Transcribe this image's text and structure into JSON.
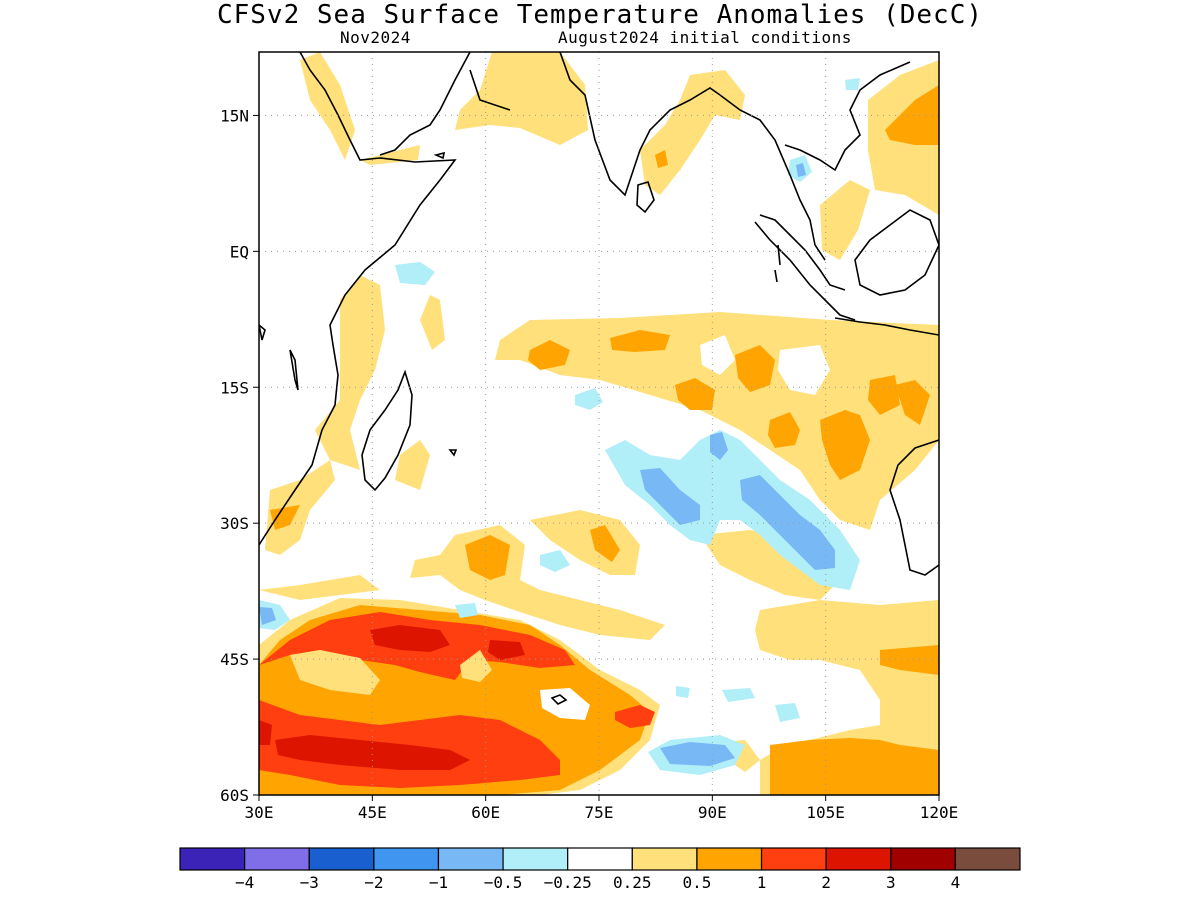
{
  "title": "CFSv2 Sea Surface Temperature Anomalies (DecC)",
  "subtitle_left": "Nov2024",
  "subtitle_right": "August2024 initial conditions",
  "map": {
    "lon_range": [
      30,
      120
    ],
    "lat_range": [
      -60,
      22
    ],
    "lon_ticks": [
      {
        "value": 30,
        "label": "30E"
      },
      {
        "value": 45,
        "label": "45E"
      },
      {
        "value": 60,
        "label": "60E"
      },
      {
        "value": 75,
        "label": "75E"
      },
      {
        "value": 90,
        "label": "90E"
      },
      {
        "value": 105,
        "label": "105E"
      },
      {
        "value": 120,
        "label": "120E"
      }
    ],
    "lat_ticks": [
      {
        "value": 15,
        "label": "15N"
      },
      {
        "value": 0,
        "label": "EQ"
      },
      {
        "value": -15,
        "label": "15S"
      },
      {
        "value": -30,
        "label": "30S"
      },
      {
        "value": -45,
        "label": "45S"
      },
      {
        "value": -60,
        "label": "60S"
      }
    ],
    "grid": true
  },
  "colorbar": {
    "colors": [
      "#3b23b8",
      "#7f6ee8",
      "#1a5fd0",
      "#3f95f0",
      "#78b8f5",
      "#b0eef8",
      "#ffffff",
      "#ffe07a",
      "#ffa400",
      "#ff3f10",
      "#dd1500",
      "#a10000",
      "#7a4c3e"
    ],
    "labels": [
      "−4",
      "−3",
      "−2",
      "−1",
      "−0.5",
      "−0.25",
      "0.25",
      "0.5",
      "1",
      "2",
      "3",
      "4"
    ]
  },
  "palette": {
    "warm1": "#ffe07a",
    "warm2": "#ffa400",
    "warm3": "#ff3f10",
    "warm4": "#dd1500",
    "cool1": "#b0eef8",
    "cool2": "#78b8f5"
  }
}
